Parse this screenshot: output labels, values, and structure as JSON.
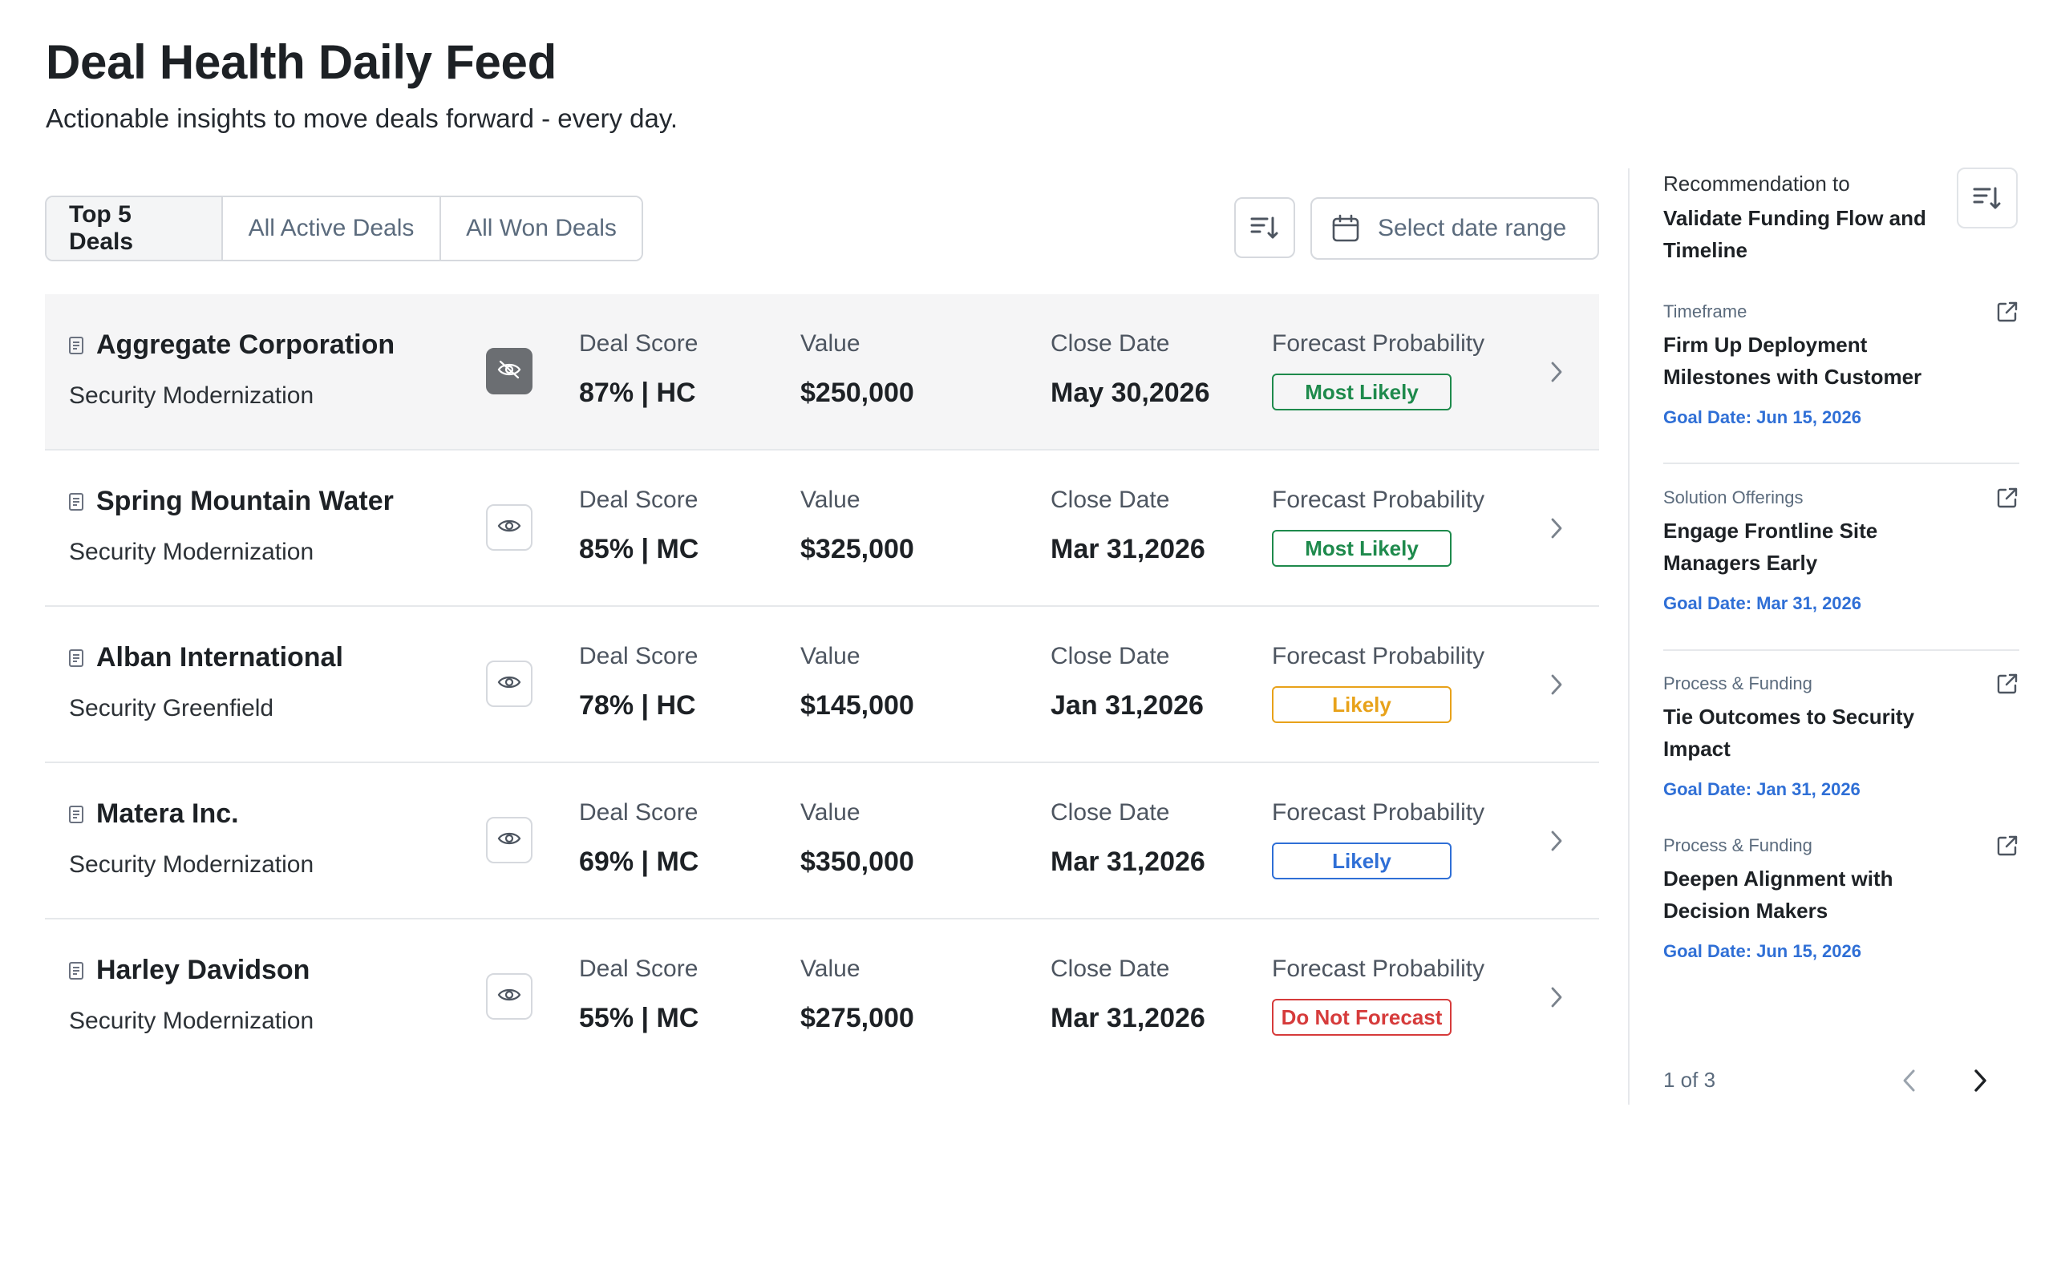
{
  "header": {
    "title": "Deal Health Daily Feed",
    "subtitle": "Actionable insights to move deals forward - every day."
  },
  "tabs": [
    {
      "label": "Top 5 Deals",
      "active": true
    },
    {
      "label": "All Active Deals",
      "active": false
    },
    {
      "label": "All Won Deals",
      "active": false
    }
  ],
  "toolbar": {
    "sort_icon": "sort-descending-icon",
    "date_icon": "calendar-icon",
    "date_label": "Select date range"
  },
  "columns": {
    "score": "Deal Score",
    "value": "Value",
    "close": "Close Date",
    "forecast": "Forecast Probability"
  },
  "deals": [
    {
      "name": "Aggregate Corporation",
      "sub": "Security Modernization",
      "score": "87% | HC",
      "value": "$250,000",
      "close": "May 30,2026",
      "forecast": "Most Likely",
      "forecast_color": "#1e8a4c",
      "visibility": "hidden",
      "highlighted": true
    },
    {
      "name": "Spring Mountain Water",
      "sub": "Security Modernization",
      "score": "85% | MC",
      "value": "$325,000",
      "close": "Mar 31,2026",
      "forecast": "Most Likely",
      "forecast_color": "#1e8a4c",
      "visibility": "visible",
      "highlighted": false
    },
    {
      "name": "Alban International",
      "sub": "Security Greenfield",
      "score": "78% | HC",
      "value": "$145,000",
      "close": "Jan 31,2026",
      "forecast": "Likely",
      "forecast_color": "#e8a21a",
      "visibility": "visible",
      "highlighted": false
    },
    {
      "name": "Matera Inc.",
      "sub": "Security Modernization",
      "score": "69% | MC",
      "value": "$350,000",
      "close": "Mar 31,2026",
      "forecast": "Likely",
      "forecast_color": "#2f6fd6",
      "visibility": "visible",
      "highlighted": false
    },
    {
      "name": "Harley Davidson",
      "sub": "Security Modernization",
      "score": "55% | MC",
      "value": "$275,000",
      "close": "Mar 31,2026",
      "forecast": "Do Not Forecast",
      "forecast_color": "#d63b3b",
      "visibility": "visible",
      "highlighted": false
    }
  ],
  "recommendations": {
    "heading_label": "Recommendation to",
    "heading_title": "Validate Funding Flow and Timeline",
    "items": [
      {
        "category": "Timeframe",
        "title": "Firm Up Deployment Milestones with Customer",
        "goal": "Goal Date: Jun 15, 2026"
      },
      {
        "category": "Solution Offerings",
        "title": "Engage Frontline Site Managers Early",
        "goal": "Goal Date: Mar 31, 2026"
      },
      {
        "category": "Process & Funding",
        "title": "Tie Outcomes to Security Impact",
        "goal": "Goal Date: Jan 31, 2026"
      },
      {
        "category": "Process & Funding",
        "title": "Deepen Alignment with Decision Makers",
        "goal": "Goal Date: Jun 15, 2026"
      }
    ],
    "pager": "1 of 3"
  },
  "colors": {
    "accent_blue": "#2f6fd6",
    "green": "#1e8a4c",
    "amber": "#e8a21a",
    "red": "#d63b3b"
  }
}
